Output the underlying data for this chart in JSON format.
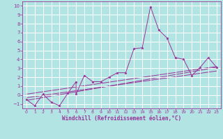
{
  "xlabel": "Windchill (Refroidissement éolien,°C)",
  "background_color": "#b2e4e4",
  "line_color": "#993399",
  "grid_color": "#ffffff",
  "xlim": [
    -0.5,
    23.5
  ],
  "ylim": [
    -1.5,
    10.5
  ],
  "xticks": [
    0,
    1,
    2,
    3,
    4,
    5,
    6,
    7,
    8,
    9,
    10,
    11,
    12,
    13,
    14,
    15,
    16,
    17,
    18,
    19,
    20,
    21,
    22,
    23
  ],
  "yticks": [
    -1,
    0,
    1,
    2,
    3,
    4,
    5,
    6,
    7,
    8,
    9,
    10
  ],
  "scatter_x": [
    0,
    1,
    2,
    3,
    4,
    5,
    6,
    6,
    7,
    8,
    9,
    10,
    11,
    12,
    13,
    14,
    15,
    16,
    17,
    18,
    19,
    20,
    21,
    22,
    23
  ],
  "scatter_y": [
    -0.5,
    -1.2,
    0.1,
    -0.8,
    -1.2,
    0.2,
    1.5,
    0.1,
    2.2,
    1.5,
    1.5,
    2.0,
    2.5,
    2.5,
    5.2,
    5.3,
    9.9,
    7.3,
    6.4,
    4.2,
    4.0,
    2.2,
    3.1,
    4.2,
    3.1
  ],
  "line1_x": [
    0,
    23
  ],
  "line1_y": [
    -0.6,
    3.1
  ],
  "line2_x": [
    0,
    23
  ],
  "line2_y": [
    -0.3,
    2.7
  ],
  "line3_x": [
    0,
    23
  ],
  "line3_y": [
    0.1,
    3.2
  ]
}
